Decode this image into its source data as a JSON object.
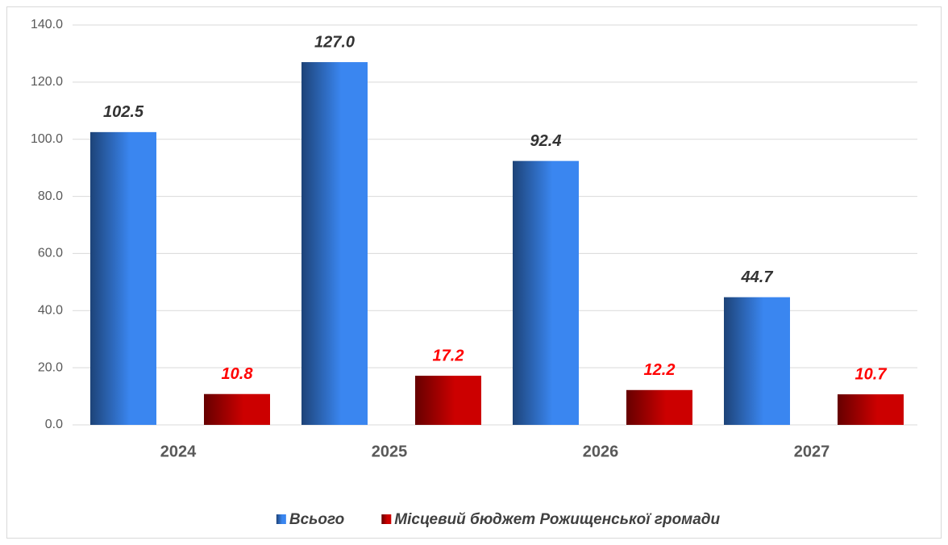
{
  "chart_data": {
    "type": "bar",
    "categories": [
      "2024",
      "2025",
      "2026",
      "2027"
    ],
    "series": [
      {
        "name": "Всього",
        "color": "#3a86f0",
        "values": [
          102.5,
          127.0,
          92.4,
          44.7
        ],
        "value_labels": [
          "102.5",
          "127.0",
          "92.4",
          "44.7"
        ]
      },
      {
        "name": "Місцевий бюджет Рожищенської громади",
        "color": "#cc0000",
        "values": [
          10.8,
          17.2,
          12.2,
          10.7
        ],
        "value_labels": [
          "10.8",
          "17.2",
          "12.2",
          "10.7"
        ]
      }
    ],
    "ylim": [
      0,
      140
    ],
    "yticks": [
      {
        "value": 0,
        "label": "0.0"
      },
      {
        "value": 20,
        "label": "20.0"
      },
      {
        "value": 40,
        "label": "40.0"
      },
      {
        "value": 60,
        "label": "60.0"
      },
      {
        "value": 80,
        "label": "80.0"
      },
      {
        "value": 100,
        "label": "100.0"
      },
      {
        "value": 120,
        "label": "120.0"
      },
      {
        "value": 140,
        "label": "140.0"
      }
    ],
    "grid": true,
    "legend": "bottom"
  }
}
